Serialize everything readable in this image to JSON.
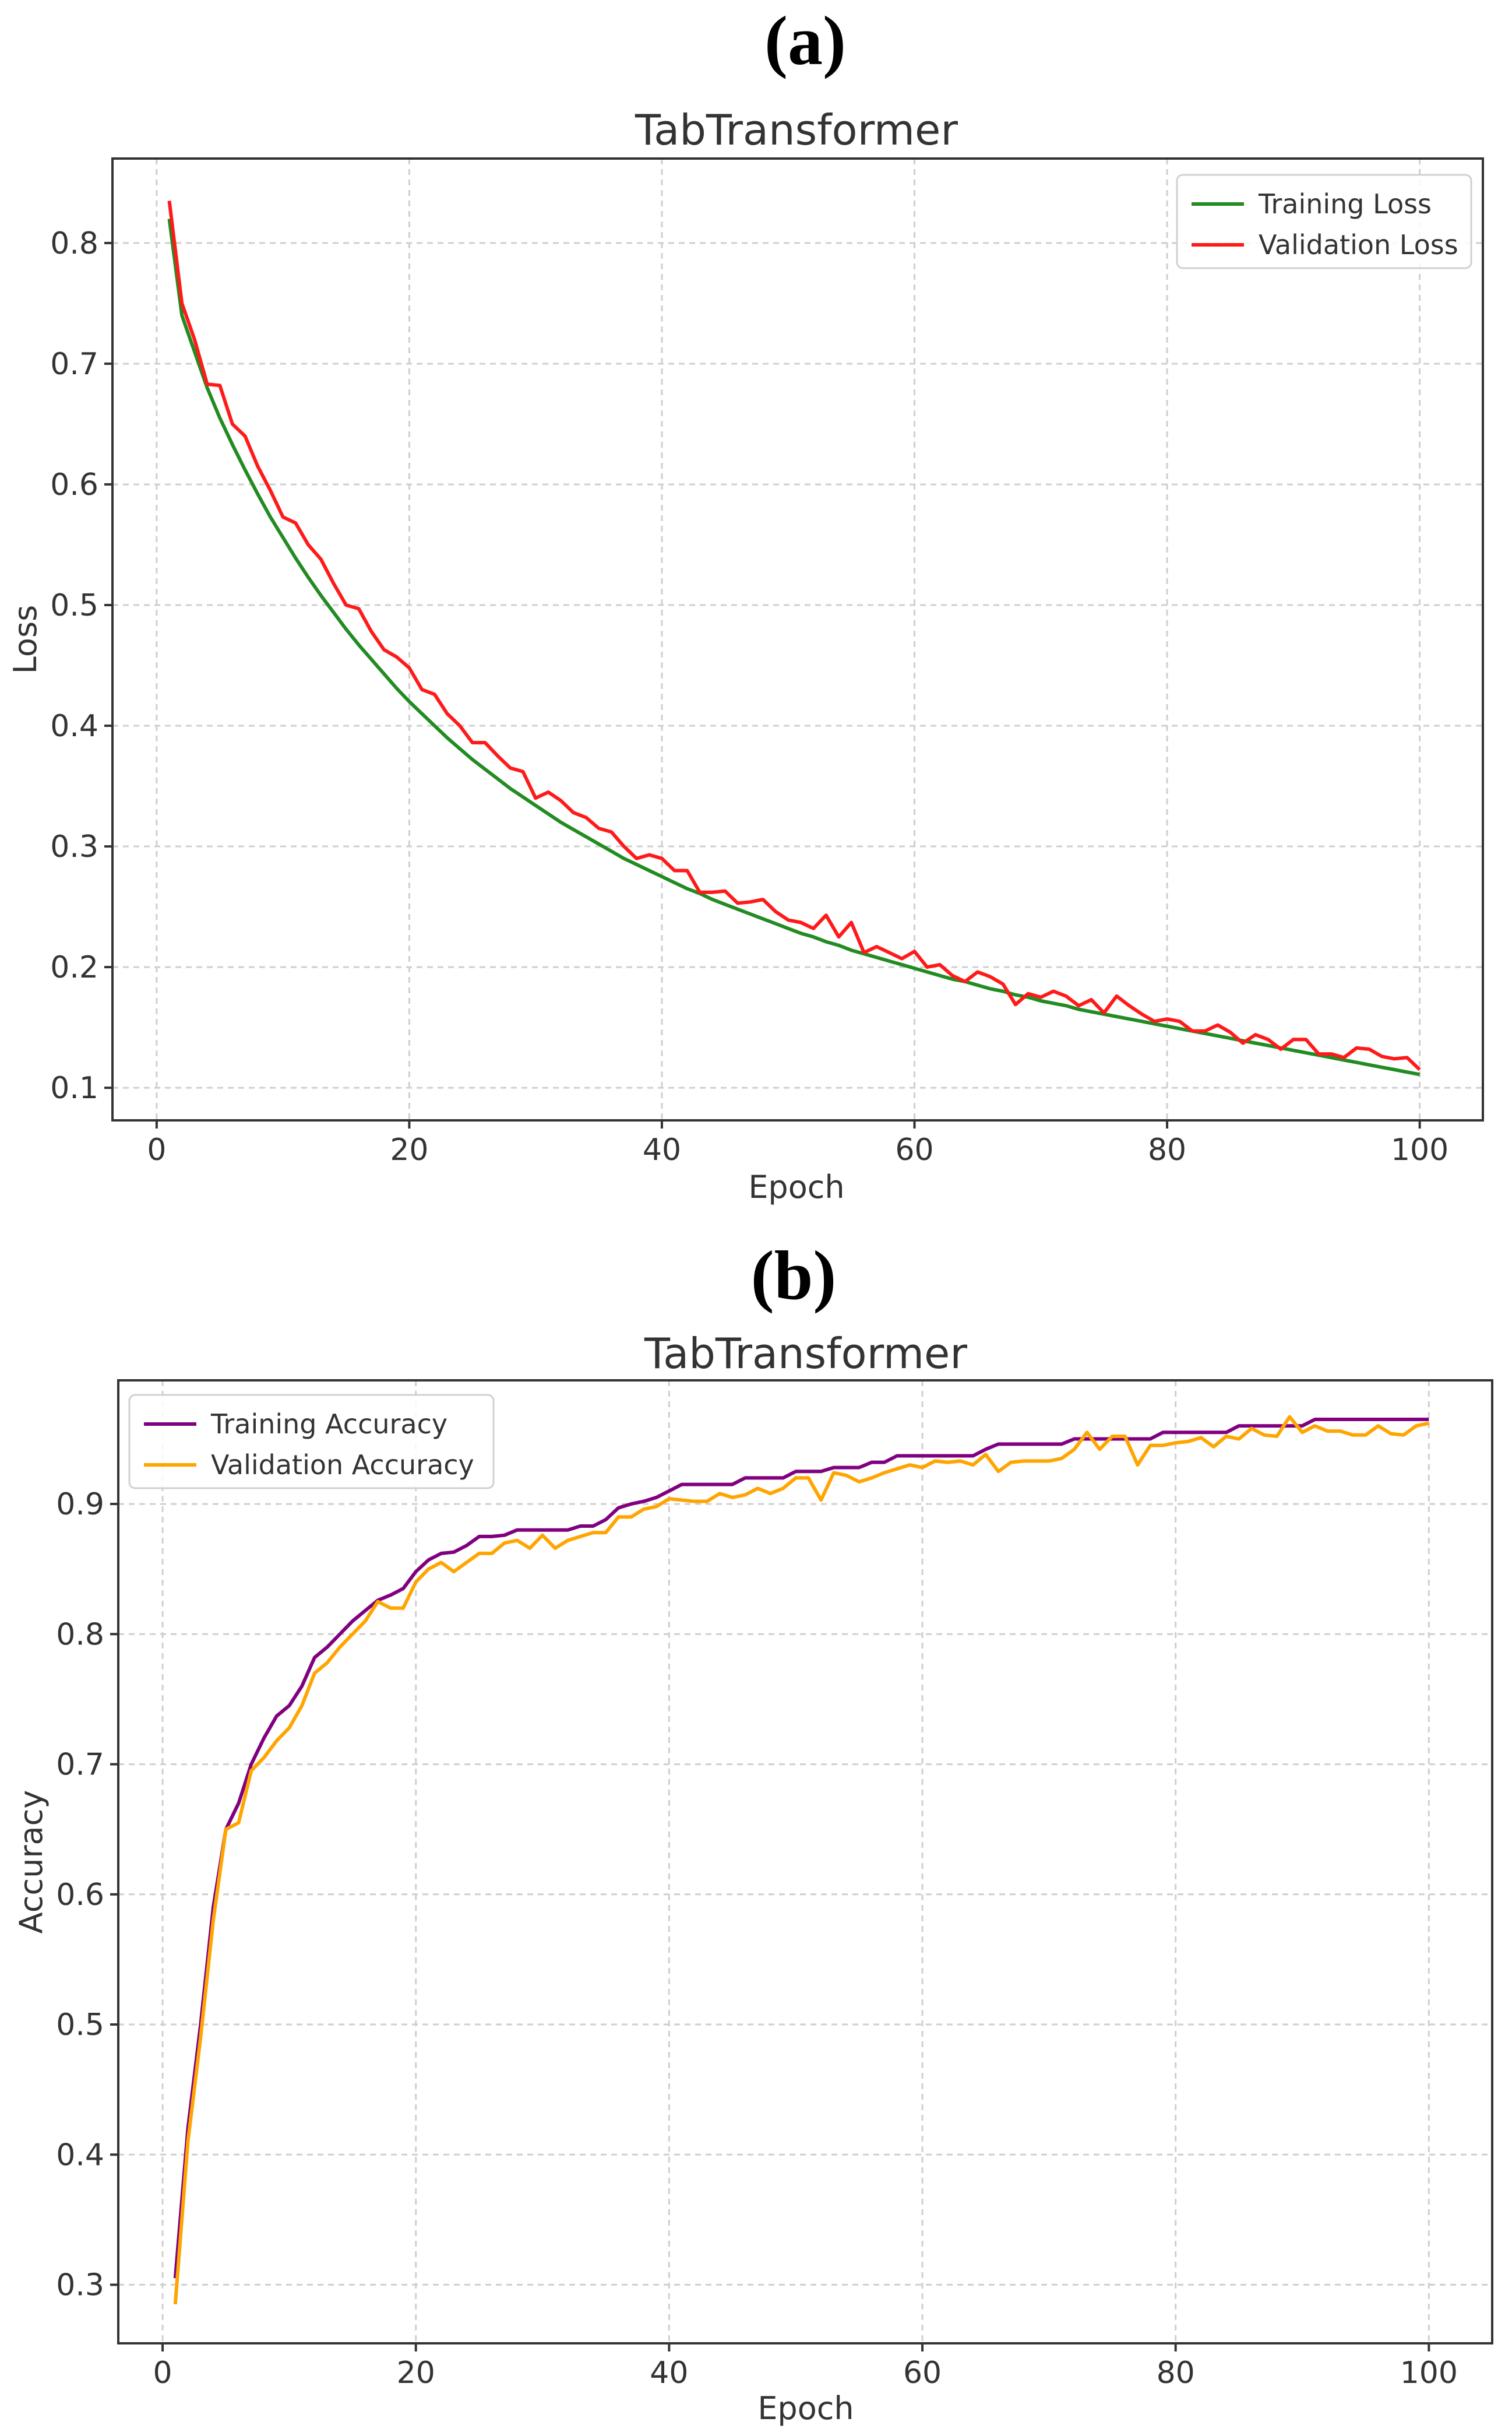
{
  "chart_data": [
    {
      "panel_label": "(a)",
      "type": "line",
      "title": "TabTransformer",
      "xlabel": "Epoch",
      "ylabel": "Loss",
      "xlim": [
        -3.5,
        105
      ],
      "ylim": [
        0.073,
        0.87
      ],
      "xticks": [
        0,
        20,
        40,
        60,
        80,
        100
      ],
      "yticks": [
        0.1,
        0.2,
        0.3,
        0.4,
        0.5,
        0.6,
        0.7,
        0.8
      ],
      "xtick_labels": [
        "0",
        "20",
        "40",
        "60",
        "80",
        "100"
      ],
      "ytick_labels": [
        "0.1",
        "0.2",
        "0.3",
        "0.4",
        "0.5",
        "0.6",
        "0.7",
        "0.8"
      ],
      "grid": true,
      "legend_position": "top-right",
      "series": [
        {
          "name": "Training Loss",
          "color": "#228B22",
          "x": [
            1,
            2,
            3,
            4,
            5,
            6,
            7,
            8,
            9,
            10,
            11,
            12,
            13,
            14,
            15,
            16,
            17,
            18,
            19,
            20,
            21,
            22,
            23,
            24,
            25,
            26,
            27,
            28,
            29,
            30,
            31,
            32,
            33,
            34,
            35,
            36,
            37,
            38,
            39,
            40,
            41,
            42,
            43,
            44,
            45,
            46,
            47,
            48,
            49,
            50,
            51,
            52,
            53,
            54,
            55,
            56,
            57,
            58,
            59,
            60,
            61,
            62,
            63,
            64,
            65,
            66,
            67,
            68,
            69,
            70,
            71,
            72,
            73,
            74,
            75,
            76,
            77,
            78,
            79,
            80,
            81,
            82,
            83,
            84,
            85,
            86,
            87,
            88,
            89,
            90,
            91,
            92,
            93,
            94,
            95,
            96,
            97,
            98,
            99,
            100
          ],
          "values": [
            0.82,
            0.74,
            0.71,
            0.68,
            0.655,
            0.633,
            0.612,
            0.592,
            0.573,
            0.556,
            0.539,
            0.523,
            0.508,
            0.494,
            0.48,
            0.467,
            0.455,
            0.443,
            0.431,
            0.42,
            0.41,
            0.4,
            0.39,
            0.381,
            0.372,
            0.364,
            0.356,
            0.348,
            0.341,
            0.334,
            0.327,
            0.32,
            0.314,
            0.308,
            0.302,
            0.296,
            0.29,
            0.285,
            0.28,
            0.275,
            0.27,
            0.265,
            0.261,
            0.256,
            0.252,
            0.248,
            0.244,
            0.24,
            0.236,
            0.232,
            0.228,
            0.225,
            0.221,
            0.218,
            0.214,
            0.211,
            0.208,
            0.205,
            0.202,
            0.199,
            0.196,
            0.193,
            0.19,
            0.188,
            0.185,
            0.182,
            0.18,
            0.177,
            0.175,
            0.172,
            0.17,
            0.168,
            0.165,
            0.163,
            0.161,
            0.159,
            0.157,
            0.155,
            0.153,
            0.151,
            0.149,
            0.147,
            0.145,
            0.143,
            0.141,
            0.139,
            0.137,
            0.135,
            0.133,
            0.131,
            0.129,
            0.127,
            0.125,
            0.123,
            0.121,
            0.119,
            0.117,
            0.115,
            0.113,
            0.111
          ]
        },
        {
          "name": "Validation Loss",
          "color": "#FF1A1A",
          "x": [
            1,
            2,
            3,
            4,
            5,
            6,
            7,
            8,
            9,
            10,
            11,
            12,
            13,
            14,
            15,
            16,
            17,
            18,
            19,
            20,
            21,
            22,
            23,
            24,
            25,
            26,
            27,
            28,
            29,
            30,
            31,
            32,
            33,
            34,
            35,
            36,
            37,
            38,
            39,
            40,
            41,
            42,
            43,
            44,
            45,
            46,
            47,
            48,
            49,
            50,
            51,
            52,
            53,
            54,
            55,
            56,
            57,
            58,
            59,
            60,
            61,
            62,
            63,
            64,
            65,
            66,
            67,
            68,
            69,
            70,
            71,
            72,
            73,
            74,
            75,
            76,
            77,
            78,
            79,
            80,
            81,
            82,
            83,
            84,
            85,
            86,
            87,
            88,
            89,
            90,
            91,
            92,
            93,
            94,
            95,
            96,
            97,
            98,
            99,
            100
          ],
          "values": [
            0.835,
            0.75,
            0.72,
            0.683,
            0.682,
            0.65,
            0.64,
            0.615,
            0.595,
            0.573,
            0.568,
            0.55,
            0.538,
            0.518,
            0.5,
            0.497,
            0.478,
            0.463,
            0.457,
            0.448,
            0.43,
            0.426,
            0.41,
            0.4,
            0.386,
            0.386,
            0.375,
            0.365,
            0.362,
            0.34,
            0.345,
            0.338,
            0.328,
            0.324,
            0.315,
            0.312,
            0.3,
            0.29,
            0.293,
            0.29,
            0.28,
            0.28,
            0.262,
            0.262,
            0.263,
            0.253,
            0.254,
            0.256,
            0.246,
            0.239,
            0.237,
            0.232,
            0.243,
            0.225,
            0.237,
            0.212,
            0.217,
            0.212,
            0.207,
            0.213,
            0.2,
            0.202,
            0.193,
            0.188,
            0.196,
            0.192,
            0.186,
            0.169,
            0.178,
            0.175,
            0.18,
            0.176,
            0.168,
            0.173,
            0.162,
            0.176,
            0.168,
            0.161,
            0.155,
            0.157,
            0.155,
            0.147,
            0.147,
            0.152,
            0.146,
            0.137,
            0.144,
            0.14,
            0.132,
            0.14,
            0.14,
            0.128,
            0.128,
            0.125,
            0.133,
            0.132,
            0.126,
            0.124,
            0.125,
            0.115
          ]
        }
      ]
    },
    {
      "panel_label": "(b)",
      "type": "line",
      "title": "TabTransformer",
      "xlabel": "Epoch",
      "ylabel": "Accuracy",
      "xlim": [
        -3.5,
        105
      ],
      "ylim": [
        0.255,
        0.995
      ],
      "xticks": [
        0,
        20,
        40,
        60,
        80,
        100
      ],
      "yticks": [
        0.3,
        0.4,
        0.5,
        0.6,
        0.7,
        0.8,
        0.9
      ],
      "xtick_labels": [
        "0",
        "20",
        "40",
        "60",
        "80",
        "100"
      ],
      "ytick_labels": [
        "0.3",
        "0.4",
        "0.5",
        "0.6",
        "0.7",
        "0.8",
        "0.9"
      ],
      "grid": true,
      "legend_position": "top-left",
      "series": [
        {
          "name": "Training Accuracy",
          "color": "#800080",
          "x": [
            1,
            2,
            3,
            4,
            5,
            6,
            7,
            8,
            9,
            10,
            11,
            12,
            13,
            14,
            15,
            16,
            17,
            18,
            19,
            20,
            21,
            22,
            23,
            24,
            25,
            26,
            27,
            28,
            29,
            30,
            31,
            32,
            33,
            34,
            35,
            36,
            37,
            38,
            39,
            40,
            41,
            42,
            43,
            44,
            45,
            46,
            47,
            48,
            49,
            50,
            51,
            52,
            53,
            54,
            55,
            56,
            57,
            58,
            59,
            60,
            61,
            62,
            63,
            64,
            65,
            66,
            67,
            68,
            69,
            70,
            71,
            72,
            73,
            74,
            75,
            76,
            77,
            78,
            79,
            80,
            81,
            82,
            83,
            84,
            85,
            86,
            87,
            88,
            89,
            90,
            91,
            92,
            93,
            94,
            95,
            96,
            97,
            98,
            99,
            100
          ],
          "values": [
            0.305,
            0.42,
            0.5,
            0.59,
            0.65,
            0.67,
            0.7,
            0.72,
            0.737,
            0.745,
            0.76,
            0.782,
            0.79,
            0.8,
            0.81,
            0.818,
            0.826,
            0.83,
            0.835,
            0.848,
            0.857,
            0.862,
            0.863,
            0.868,
            0.875,
            0.875,
            0.876,
            0.88,
            0.88,
            0.88,
            0.88,
            0.88,
            0.883,
            0.883,
            0.888,
            0.897,
            0.9,
            0.902,
            0.905,
            0.91,
            0.915,
            0.915,
            0.915,
            0.915,
            0.915,
            0.92,
            0.92,
            0.92,
            0.92,
            0.925,
            0.925,
            0.925,
            0.928,
            0.928,
            0.928,
            0.932,
            0.932,
            0.937,
            0.937,
            0.937,
            0.937,
            0.937,
            0.937,
            0.937,
            0.942,
            0.946,
            0.946,
            0.946,
            0.946,
            0.946,
            0.946,
            0.95,
            0.95,
            0.95,
            0.95,
            0.95,
            0.95,
            0.95,
            0.955,
            0.955,
            0.955,
            0.955,
            0.955,
            0.955,
            0.96,
            0.96,
            0.96,
            0.96,
            0.96,
            0.96,
            0.965,
            0.965,
            0.965,
            0.965,
            0.965,
            0.965,
            0.965,
            0.965,
            0.965,
            0.965
          ]
        },
        {
          "name": "Validation Accuracy",
          "color": "#FFA500",
          "x": [
            1,
            2,
            3,
            4,
            5,
            6,
            7,
            8,
            9,
            10,
            11,
            12,
            13,
            14,
            15,
            16,
            17,
            18,
            19,
            20,
            21,
            22,
            23,
            24,
            25,
            26,
            27,
            28,
            29,
            30,
            31,
            32,
            33,
            34,
            35,
            36,
            37,
            38,
            39,
            40,
            41,
            42,
            43,
            44,
            45,
            46,
            47,
            48,
            49,
            50,
            51,
            52,
            53,
            54,
            55,
            56,
            57,
            58,
            59,
            60,
            61,
            62,
            63,
            64,
            65,
            66,
            67,
            68,
            69,
            70,
            71,
            72,
            73,
            74,
            75,
            76,
            77,
            78,
            79,
            80,
            81,
            82,
            83,
            84,
            85,
            86,
            87,
            88,
            89,
            90,
            91,
            92,
            93,
            94,
            95,
            96,
            97,
            98,
            99,
            100
          ],
          "values": [
            0.285,
            0.41,
            0.49,
            0.58,
            0.65,
            0.655,
            0.695,
            0.705,
            0.718,
            0.728,
            0.745,
            0.77,
            0.778,
            0.79,
            0.8,
            0.81,
            0.825,
            0.82,
            0.82,
            0.84,
            0.85,
            0.855,
            0.848,
            0.855,
            0.862,
            0.862,
            0.87,
            0.872,
            0.866,
            0.876,
            0.866,
            0.872,
            0.875,
            0.878,
            0.878,
            0.89,
            0.89,
            0.896,
            0.898,
            0.904,
            0.903,
            0.902,
            0.902,
            0.908,
            0.905,
            0.907,
            0.912,
            0.908,
            0.912,
            0.92,
            0.92,
            0.903,
            0.924,
            0.922,
            0.917,
            0.92,
            0.924,
            0.927,
            0.93,
            0.928,
            0.933,
            0.932,
            0.933,
            0.93,
            0.938,
            0.925,
            0.932,
            0.933,
            0.933,
            0.933,
            0.935,
            0.942,
            0.955,
            0.942,
            0.952,
            0.952,
            0.93,
            0.945,
            0.945,
            0.947,
            0.948,
            0.951,
            0.944,
            0.952,
            0.95,
            0.958,
            0.953,
            0.952,
            0.967,
            0.955,
            0.96,
            0.956,
            0.956,
            0.953,
            0.953,
            0.96,
            0.954,
            0.953,
            0.96,
            0.962
          ]
        }
      ]
    }
  ]
}
